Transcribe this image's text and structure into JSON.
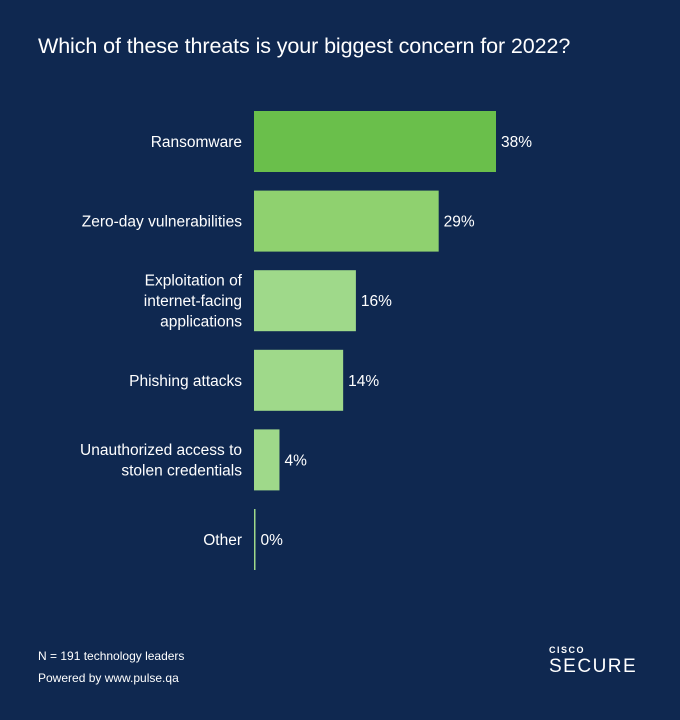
{
  "title": "Which of these threats is your biggest concern for 2022?",
  "footer": {
    "sample": "N = 191 technology leaders",
    "powered": "Powered by www.pulse.qa"
  },
  "logo": {
    "brand": "CISCO",
    "product": "SECURE"
  },
  "colors": {
    "background": "#0f2850",
    "bar_top": "#6abf4b",
    "bar_mid": "#8fd16f",
    "bar_light": "#9fd98a"
  },
  "chart_data": {
    "type": "bar",
    "orientation": "horizontal",
    "title": "Which of these threats is your biggest concern for 2022?",
    "categories": [
      [
        "Ransomware"
      ],
      [
        "Zero-day vulnerabilities"
      ],
      [
        "Exploitation of",
        "internet-facing",
        "applications"
      ],
      [
        "Phishing attacks"
      ],
      [
        "Unauthorized access to",
        "stolen credentials"
      ],
      [
        "Other"
      ]
    ],
    "values": [
      38,
      29,
      16,
      14,
      4,
      0
    ],
    "value_labels": [
      "38%",
      "29%",
      "16%",
      "14%",
      "4%",
      "0%"
    ],
    "unit": "%",
    "xlim": [
      0,
      38
    ],
    "grid": false
  }
}
